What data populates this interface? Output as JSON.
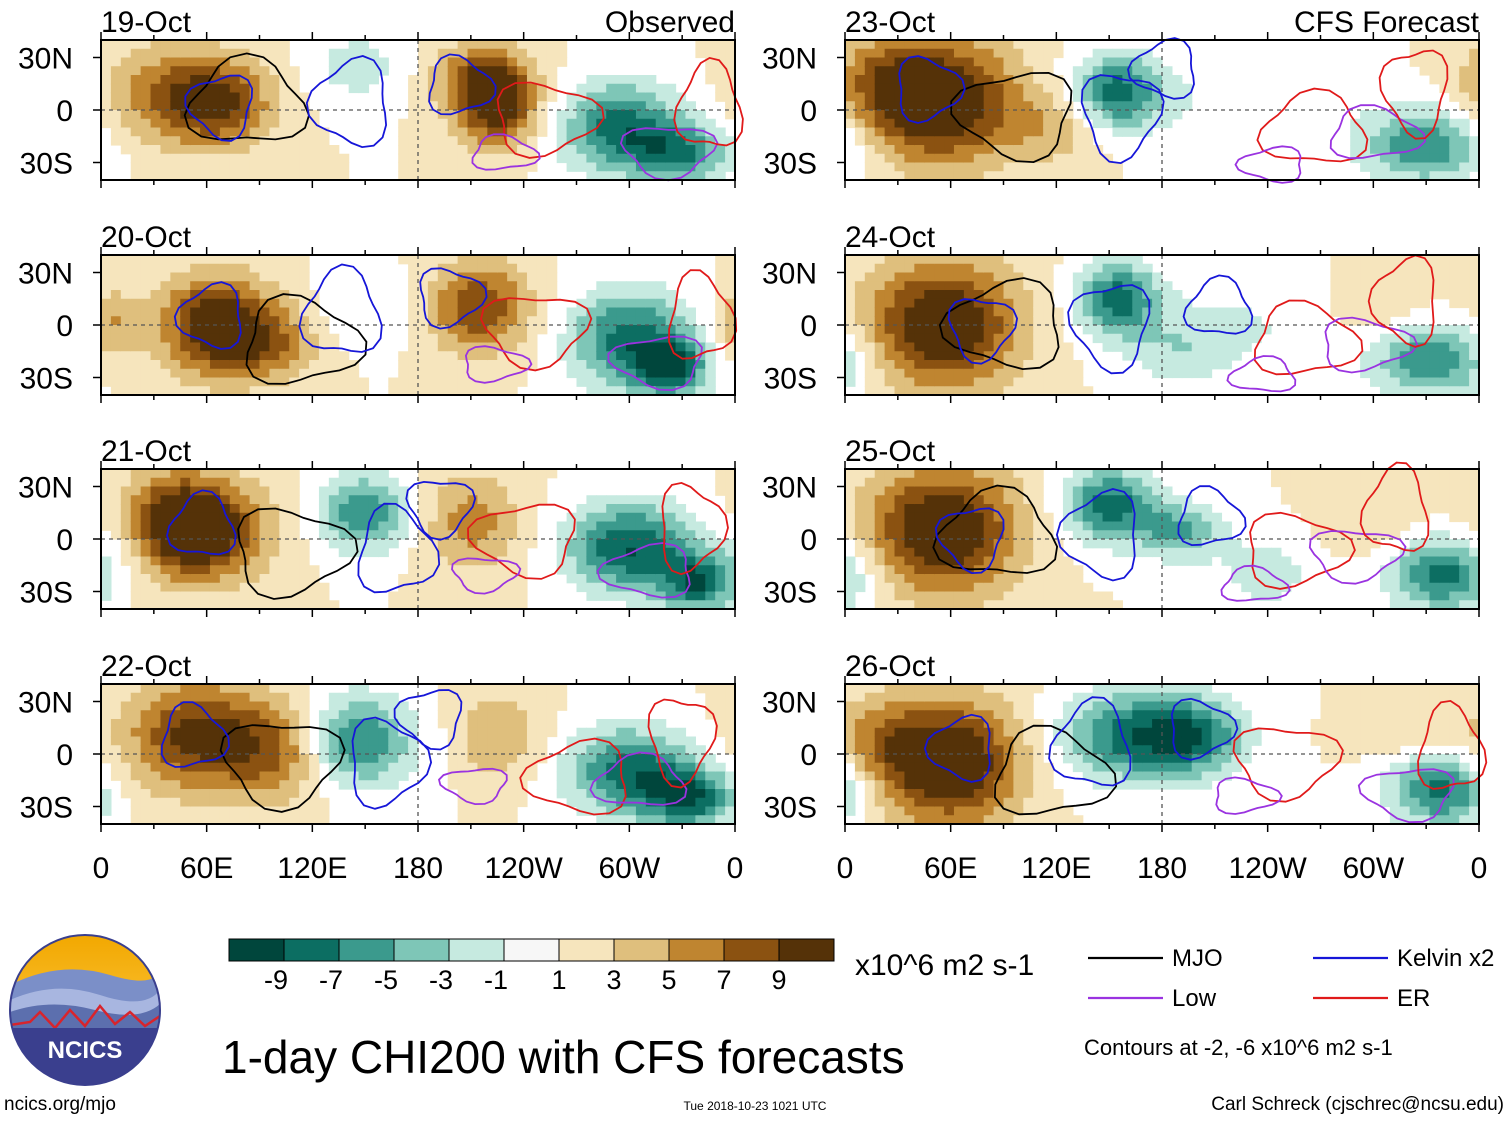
{
  "chart_data": {
    "type": "heatmap",
    "variable": "CHI200 velocity potential anomaly",
    "title": "1-day CHI200 with CFS forecasts",
    "column_titles": {
      "observed": "Observed",
      "forecast": "CFS Forecast"
    },
    "panels_observed": [
      "19-Oct",
      "20-Oct",
      "21-Oct",
      "22-Oct"
    ],
    "panels_forecast": [
      "23-Oct",
      "24-Oct",
      "25-Oct",
      "26-Oct"
    ],
    "lat_ticks": [
      "30N",
      "0",
      "30S"
    ],
    "lon_ticks": [
      "0",
      "60E",
      "120E",
      "180",
      "120W",
      "60W",
      "0"
    ],
    "colorbar": {
      "unit_label": "x10^6 m2 s-1",
      "tick_labels": [
        "-9",
        "-7",
        "-5",
        "-3",
        "-1",
        "1",
        "3",
        "5",
        "7",
        "9"
      ],
      "colors": [
        "#00463c",
        "#0c6e62",
        "#3b9a8d",
        "#7ec6b7",
        "#c6eae0",
        "#f7f7f7",
        "#f6e5bd",
        "#dfbf7d",
        "#bf8530",
        "#8b5211",
        "#553208"
      ]
    },
    "legend": [
      {
        "name": "MJO",
        "color": "#000000"
      },
      {
        "name": "Kelvin x2",
        "color": "#1616d8"
      },
      {
        "name": "Low",
        "color": "#9a33e0"
      },
      {
        "name": "ER",
        "color": "#e01a1a"
      }
    ],
    "contour_note": "Contours at -2, -6 x10^6 m2 s-1"
  },
  "footer": {
    "logo_text": "NCICS",
    "site": "ncics.org/mjo",
    "timestamp": "Tue 2018-10-23 1021 UTC",
    "author": "Carl Schreck (cjschrec@ncsu.edu)"
  }
}
